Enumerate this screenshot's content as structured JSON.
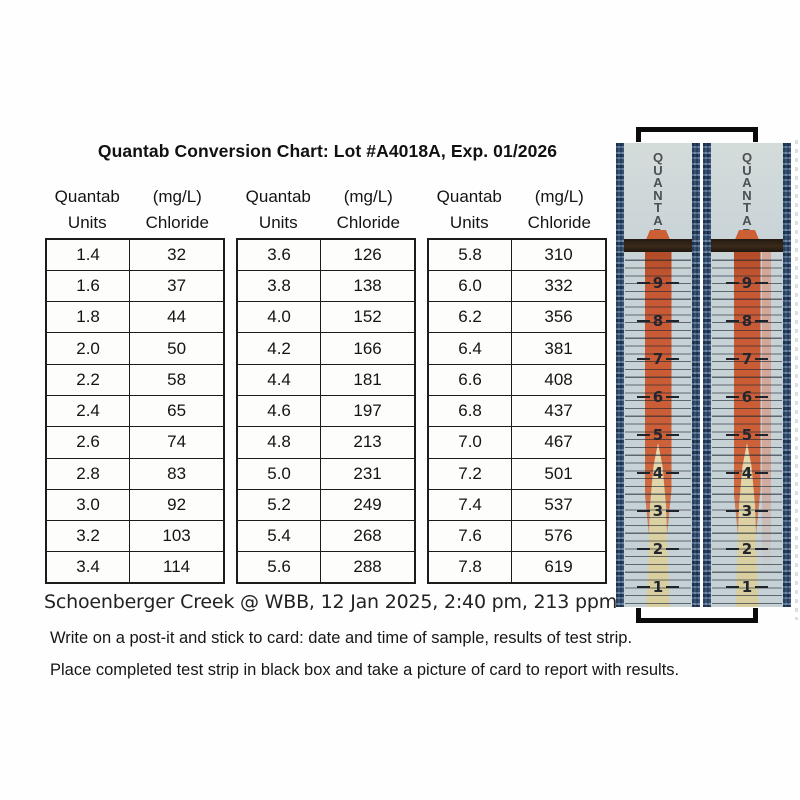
{
  "title": "Quantab Conversion Chart: Lot #A4018A, Exp. 01/2026",
  "table_headers": {
    "units_line1": "Quantab",
    "units_line2": "Units",
    "chloride_line1": "(mg/L)",
    "chloride_line2": "Chloride"
  },
  "tables": [
    {
      "rows": [
        [
          "1.4",
          "32"
        ],
        [
          "1.6",
          "37"
        ],
        [
          "1.8",
          "44"
        ],
        [
          "2.0",
          "50"
        ],
        [
          "2.2",
          "58"
        ],
        [
          "2.4",
          "65"
        ],
        [
          "2.6",
          "74"
        ],
        [
          "2.8",
          "83"
        ],
        [
          "3.0",
          "92"
        ],
        [
          "3.2",
          "103"
        ],
        [
          "3.4",
          "114"
        ]
      ]
    },
    {
      "rows": [
        [
          "3.6",
          "126"
        ],
        [
          "3.8",
          "138"
        ],
        [
          "4.0",
          "152"
        ],
        [
          "4.2",
          "166"
        ],
        [
          "4.4",
          "181"
        ],
        [
          "4.6",
          "197"
        ],
        [
          "4.8",
          "213"
        ],
        [
          "5.0",
          "231"
        ],
        [
          "5.2",
          "249"
        ],
        [
          "5.4",
          "268"
        ],
        [
          "5.6",
          "288"
        ]
      ]
    },
    {
      "rows": [
        [
          "5.8",
          "310"
        ],
        [
          "6.0",
          "332"
        ],
        [
          "6.2",
          "356"
        ],
        [
          "6.4",
          "381"
        ],
        [
          "6.6",
          "408"
        ],
        [
          "6.8",
          "437"
        ],
        [
          "7.0",
          "467"
        ],
        [
          "7.2",
          "501"
        ],
        [
          "7.4",
          "537"
        ],
        [
          "7.6",
          "576"
        ],
        [
          "7.8",
          "619"
        ]
      ]
    }
  ],
  "strips": {
    "label": "QUANTAB",
    "scale": [
      "9",
      "8",
      "7",
      "6",
      "5",
      "4",
      "3",
      "2",
      "1"
    ]
  },
  "caption": "Schoenberger Creek @ WBB, 12 Jan 2025, 2:40 pm, 213 ppm",
  "notes": [
    "Write on a post-it and stick to card: date and time of sample, results of test strip.",
    "Place completed test strip in black box and take a picture of card to report with results."
  ],
  "colors": {
    "strip_orange": "#cc5f38",
    "strip_yellow": "#dcd2a4",
    "strip_background": "#c7d2d6",
    "strip_edge_blue": "#44638a",
    "band_brown": "#3a2a1a",
    "bracket_black": "#0b0b0b"
  }
}
